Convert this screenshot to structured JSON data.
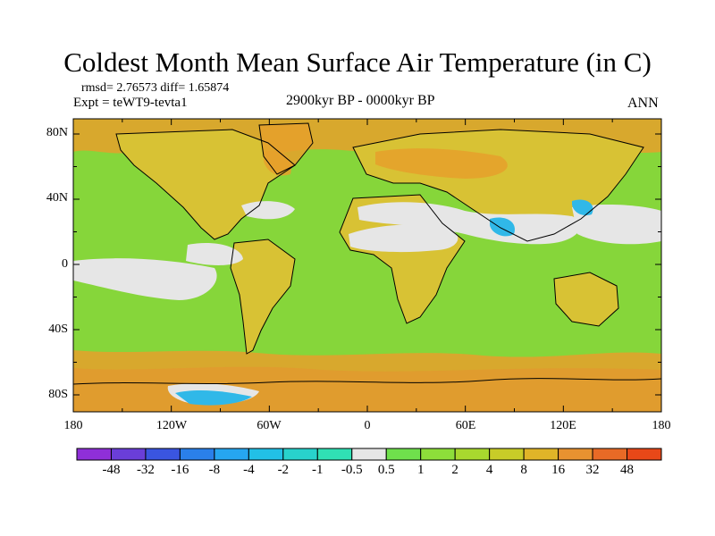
{
  "title": "Coldest Month Mean Surface Air Temperature (in C)",
  "stats": "rmsd= 2.76573 diff= 1.65874",
  "experiment": "Expt = teWT9-tevta1",
  "period": "2900kyr BP - 0000kyr BP",
  "season": "ANN",
  "lat_labels": [
    "80N",
    "40N",
    "0",
    "40S",
    "80S"
  ],
  "lon_labels": [
    "180",
    "120W",
    "60W",
    "0",
    "60E",
    "120E",
    "180"
  ],
  "colorbar": {
    "labels": [
      "-48",
      "-32",
      "-16",
      "-8",
      "-4",
      "-2",
      "-1",
      "-0.5",
      "0.5",
      "1",
      "2",
      "4",
      "8",
      "16",
      "32",
      "48"
    ],
    "colors": [
      "#8f2fd8",
      "#6a3ed8",
      "#3a55e0",
      "#2a80ea",
      "#26a6f0",
      "#22c0e6",
      "#28d2cc",
      "#30e0b4",
      "#e6e6e6",
      "#6fe04c",
      "#8dde3a",
      "#a8d82e",
      "#c8cc28",
      "#e0b428",
      "#e89230",
      "#e86a26",
      "#e84818"
    ]
  },
  "palette": {
    "land_orange": "#d8c234",
    "ocean_green": "#86d63a",
    "neutral": "#e6e6e6",
    "warm_orange": "#e6a02c",
    "cold_blue": "#30b8e8"
  }
}
